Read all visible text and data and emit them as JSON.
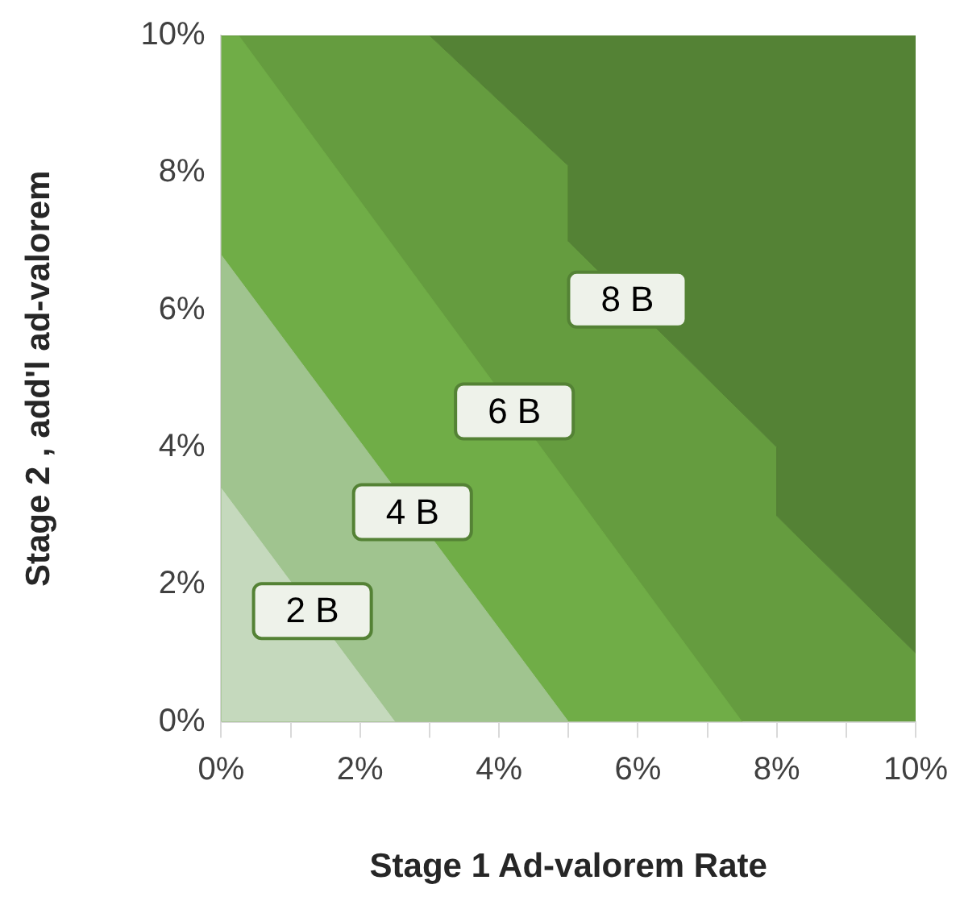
{
  "chart_data": {
    "type": "area",
    "xlabel": "Stage 1 Ad-valorem Rate",
    "ylabel": "Stage 2 , add'l ad-valorem",
    "xlim": [
      0,
      10
    ],
    "ylim": [
      0,
      10
    ],
    "xticks": [
      {
        "value": 0,
        "label": "0%"
      },
      {
        "value": 1,
        "label": null
      },
      {
        "value": 2,
        "label": "2%"
      },
      {
        "value": 3,
        "label": null
      },
      {
        "value": 4,
        "label": "4%"
      },
      {
        "value": 5,
        "label": null
      },
      {
        "value": 6,
        "label": "6%"
      },
      {
        "value": 7,
        "label": null
      },
      {
        "value": 8,
        "label": "8%"
      },
      {
        "value": 9,
        "label": null
      },
      {
        "value": 10,
        "label": "10%"
      }
    ],
    "yticks": [
      {
        "value": 0,
        "label": "0%"
      },
      {
        "value": 2,
        "label": "2%"
      },
      {
        "value": 4,
        "label": "4%"
      },
      {
        "value": 6,
        "label": "6%"
      },
      {
        "value": 8,
        "label": "8%"
      },
      {
        "value": 10,
        "label": "10%"
      }
    ],
    "series": [
      {
        "name": "2 B",
        "color": "#c5d9bd",
        "x": [
          0,
          2.5
        ],
        "values": [
          3.4,
          0
        ]
      },
      {
        "name": "4 B",
        "color": "#a0c48f",
        "x": [
          0,
          5
        ],
        "values": [
          6.8,
          0
        ]
      },
      {
        "name": "6 B",
        "color": "#70ad47",
        "x": [
          0,
          0.25,
          7.5
        ],
        "values": [
          10,
          10,
          0
        ]
      },
      {
        "name": "8 B",
        "color": "#659c3f",
        "x": [
          0,
          3,
          5,
          5,
          8,
          8,
          10
        ],
        "values": [
          10,
          10,
          8.1,
          7,
          4,
          3,
          1
        ]
      },
      {
        "color": "#548235",
        "x": [
          0,
          3,
          5,
          5,
          8,
          8,
          10,
          10
        ],
        "values": [
          10,
          10,
          8.1,
          7,
          4,
          3,
          1,
          10
        ]
      }
    ],
    "grid": false,
    "legend": false
  }
}
